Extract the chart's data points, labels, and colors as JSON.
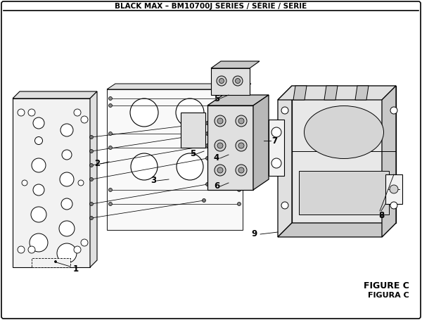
{
  "title": "BLACK MAX – BM10700J SERIES / SÉRIE / SERIE",
  "figure_label": "FIGURE C",
  "figure_label2": "FIGURA C",
  "bg_color": "#ffffff",
  "line_color": "#000000",
  "text_color": "#000000",
  "fill_light": "#f2f2f2",
  "fill_mid": "#e0e0e0",
  "fill_dark": "#c8c8c8",
  "fill_white": "#ffffff"
}
